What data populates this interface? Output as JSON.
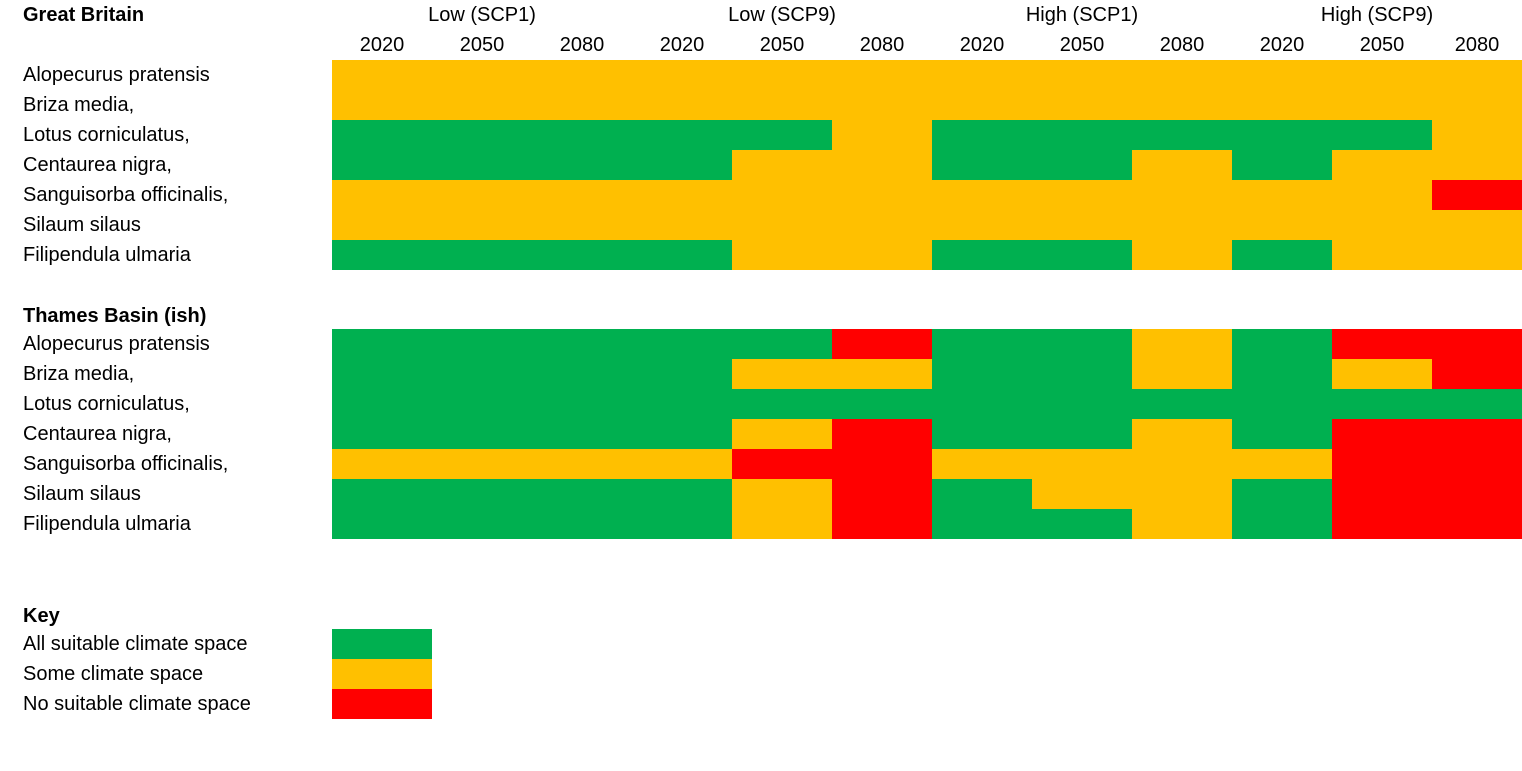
{
  "chart_data": {
    "type": "heatmap",
    "scenario_groups": [
      "Low (SCP1)",
      "Low (SCP9)",
      "High (SCP1)",
      "High (SCP9)"
    ],
    "years": [
      "2020",
      "2050",
      "2080",
      "2020",
      "2050",
      "2080",
      "2020",
      "2050",
      "2080",
      "2020",
      "2050",
      "2080"
    ],
    "regions": [
      {
        "title": "Great Britain",
        "species": [
          "Alopecurus pratensis",
          "Briza media,",
          "Lotus corniculatus,",
          "Centaurea nigra,",
          "Sanguisorba officinalis,",
          "Silaum silaus",
          "Filipendula ulmaria"
        ],
        "values": [
          [
            "Some",
            "Some",
            "Some",
            "Some",
            "Some",
            "Some",
            "Some",
            "Some",
            "Some",
            "Some",
            "Some",
            "Some"
          ],
          [
            "Some",
            "Some",
            "Some",
            "Some",
            "Some",
            "Some",
            "Some",
            "Some",
            "Some",
            "Some",
            "Some",
            "Some"
          ],
          [
            "All",
            "All",
            "All",
            "All",
            "All",
            "Some",
            "All",
            "All",
            "All",
            "All",
            "All",
            "Some"
          ],
          [
            "All",
            "All",
            "All",
            "All",
            "Some",
            "Some",
            "All",
            "All",
            "Some",
            "All",
            "Some",
            "Some"
          ],
          [
            "Some",
            "Some",
            "Some",
            "Some",
            "Some",
            "Some",
            "Some",
            "Some",
            "Some",
            "Some",
            "Some",
            "None"
          ],
          [
            "Some",
            "Some",
            "Some",
            "Some",
            "Some",
            "Some",
            "Some",
            "Some",
            "Some",
            "Some",
            "Some",
            "Some"
          ],
          [
            "All",
            "All",
            "All",
            "All",
            "Some",
            "Some",
            "All",
            "All",
            "Some",
            "All",
            "Some",
            "Some"
          ]
        ]
      },
      {
        "title": "Thames Basin (ish)",
        "species": [
          "Alopecurus pratensis",
          "Briza media,",
          "Lotus corniculatus,",
          "Centaurea nigra,",
          "Sanguisorba officinalis,",
          "Silaum silaus",
          "Filipendula ulmaria"
        ],
        "values": [
          [
            "All",
            "All",
            "All",
            "All",
            "All",
            "None",
            "All",
            "All",
            "Some",
            "All",
            "None",
            "None"
          ],
          [
            "All",
            "All",
            "All",
            "All",
            "Some",
            "Some",
            "All",
            "All",
            "Some",
            "All",
            "Some",
            "None"
          ],
          [
            "All",
            "All",
            "All",
            "All",
            "All",
            "All",
            "All",
            "All",
            "All",
            "All",
            "All",
            "All"
          ],
          [
            "All",
            "All",
            "All",
            "All",
            "Some",
            "None",
            "All",
            "All",
            "Some",
            "All",
            "None",
            "None"
          ],
          [
            "Some",
            "Some",
            "Some",
            "Some",
            "None",
            "None",
            "Some",
            "Some",
            "Some",
            "Some",
            "None",
            "None"
          ],
          [
            "All",
            "All",
            "All",
            "All",
            "Some",
            "None",
            "All",
            "Some",
            "Some",
            "All",
            "None",
            "None"
          ],
          [
            "All",
            "All",
            "All",
            "All",
            "Some",
            "None",
            "All",
            "All",
            "Some",
            "All",
            "None",
            "None"
          ]
        ]
      }
    ],
    "categories": {
      "All": {
        "label": "All suitable climate space",
        "color": "#00b050"
      },
      "Some": {
        "label": "Some climate space",
        "color": "#ffc000"
      },
      "None": {
        "label": "No suitable climate space",
        "color": "#ff0000"
      }
    },
    "key_title": "Key",
    "key_order": [
      "All",
      "Some",
      "None"
    ]
  }
}
